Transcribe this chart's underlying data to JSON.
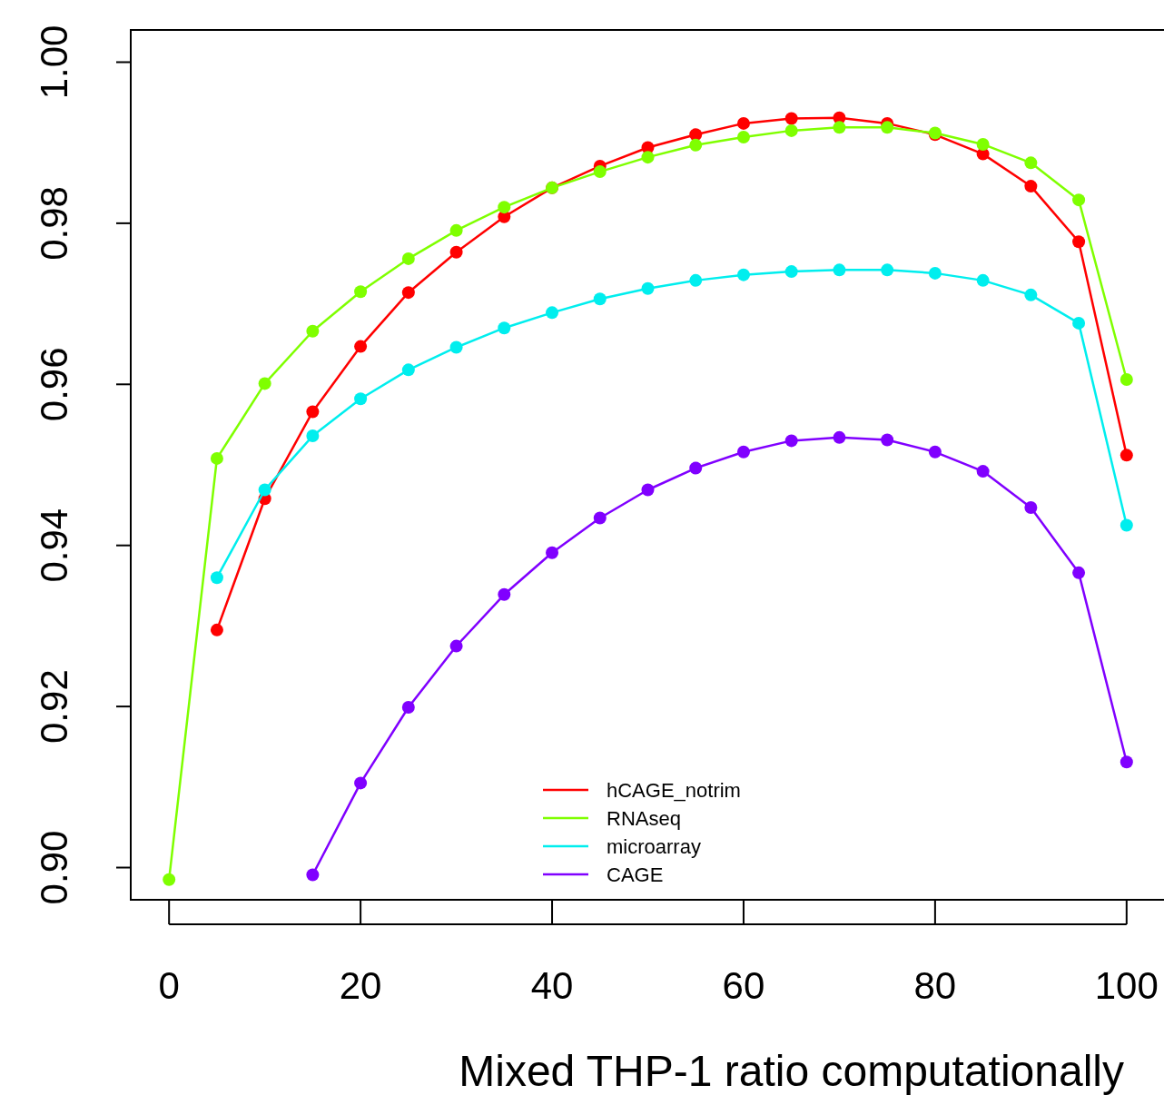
{
  "chart_data": {
    "type": "line",
    "xlabel": "Mixed THP-1 ratio computationally",
    "x": [
      0,
      5,
      10,
      15,
      20,
      25,
      30,
      35,
      40,
      45,
      50,
      55,
      60,
      65,
      70,
      75,
      80,
      85,
      90,
      95,
      100
    ],
    "xlim": [
      -4,
      104
    ],
    "xticks": [
      0,
      20,
      40,
      60,
      80,
      100
    ],
    "ylim": [
      0.896,
      1.004
    ],
    "yticks": [
      {
        "value": 0.9,
        "label": "0.90"
      },
      {
        "value": 0.92,
        "label": "0.92"
      },
      {
        "value": 0.94,
        "label": "0.94"
      },
      {
        "value": 0.96,
        "label": "0.96"
      },
      {
        "value": 0.98,
        "label": "0.98"
      },
      {
        "value": 1.0,
        "label": "1.00"
      }
    ],
    "marker": "circle",
    "line_style": "solid",
    "grid": false,
    "legend": "bottom",
    "series": [
      {
        "name": "hCAGE_notrim",
        "color": "#ff0000",
        "values": [
          null,
          0.9295,
          0.9458,
          0.9566,
          0.9647,
          0.9714,
          0.9764,
          0.9808,
          0.9844,
          0.9871,
          0.9894,
          0.991,
          0.9924,
          0.993,
          0.9931,
          0.9924,
          0.991,
          0.9886,
          0.9846,
          0.9777,
          0.9512
        ]
      },
      {
        "name": "RNAseq",
        "color": "#7fff00",
        "values": [
          0.8985,
          0.9508,
          0.9601,
          0.9666,
          0.9715,
          0.9756,
          0.9791,
          0.982,
          0.9844,
          0.9864,
          0.9882,
          0.9897,
          0.9907,
          0.9915,
          0.9919,
          0.9919,
          0.9912,
          0.9898,
          0.9875,
          0.9829,
          0.9606
        ]
      },
      {
        "name": "microarray",
        "color": "#00eeee",
        "values": [
          null,
          0.936,
          0.9469,
          0.9536,
          0.9582,
          0.9618,
          0.9646,
          0.967,
          0.9689,
          0.9706,
          0.9719,
          0.9729,
          0.9736,
          0.974,
          0.9742,
          0.9742,
          0.9738,
          0.9729,
          0.9711,
          0.9676,
          0.9425
        ]
      },
      {
        "name": "CAGE",
        "color": "#8000ff",
        "values": [
          null,
          null,
          null,
          0.8991,
          0.9105,
          0.9199,
          0.9275,
          0.9339,
          0.9391,
          0.9434,
          0.9469,
          0.9496,
          0.9516,
          0.953,
          0.9534,
          0.9531,
          0.9516,
          0.9492,
          0.9447,
          0.9366,
          0.9131
        ]
      }
    ]
  }
}
